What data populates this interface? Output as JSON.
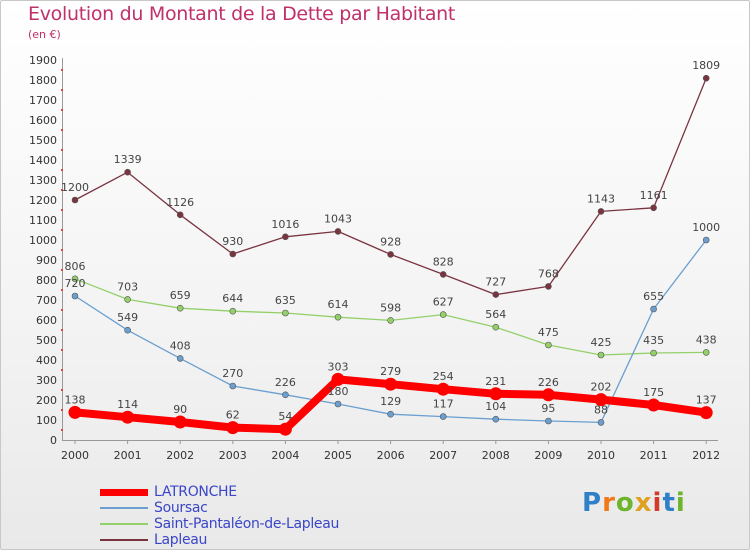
{
  "header": {
    "title": "Evolution du Montant de la Dette par Habitant",
    "subtitle": "(en €)"
  },
  "logo": {
    "text": "Proxiti"
  },
  "chart_data": {
    "type": "line",
    "title": "Evolution du Montant de la Dette par Habitant",
    "subtitle": "(en €)",
    "x": [
      "2000",
      "2001",
      "2002",
      "2003",
      "2004",
      "2005",
      "2006",
      "2007",
      "2008",
      "2009",
      "2010",
      "2011",
      "2012"
    ],
    "ylim": [
      0,
      1900
    ],
    "yticks": [
      0,
      100,
      200,
      300,
      400,
      500,
      600,
      700,
      800,
      900,
      1000,
      1100,
      1200,
      1300,
      1400,
      1500,
      1600,
      1700,
      1800,
      1900
    ],
    "grid": false,
    "legend_position": "bottom-left",
    "series": [
      {
        "name": "LATRONCHE",
        "color": "#ff0000",
        "emphasis": true,
        "values": [
          138,
          114,
          90,
          62,
          54,
          303,
          279,
          254,
          231,
          226,
          202,
          175,
          137
        ]
      },
      {
        "name": "Soursac",
        "color": "#6a9fd0",
        "emphasis": false,
        "values": [
          720,
          549,
          408,
          270,
          226,
          180,
          129,
          117,
          104,
          95,
          88,
          655,
          1000
        ]
      },
      {
        "name": "Saint-Pantaléon-de-Lapleau",
        "color": "#94d06a",
        "emphasis": false,
        "values": [
          806,
          703,
          659,
          644,
          635,
          614,
          598,
          627,
          564,
          475,
          425,
          435,
          438
        ]
      },
      {
        "name": "Lapleau",
        "color": "#7a3440",
        "emphasis": false,
        "values": [
          1200,
          1339,
          1126,
          930,
          1016,
          1043,
          928,
          828,
          727,
          768,
          1143,
          1161,
          1809
        ]
      }
    ]
  }
}
